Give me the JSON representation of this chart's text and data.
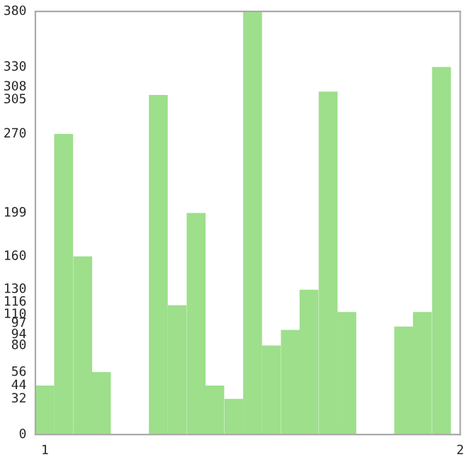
{
  "chart_data": {
    "type": "bar",
    "x": [
      1,
      1.045,
      1.091,
      1.136,
      1.182,
      1.227,
      1.273,
      1.318,
      1.364,
      1.409,
      1.455,
      1.5,
      1.545,
      1.591,
      1.636,
      1.682,
      1.727,
      1.773,
      1.818,
      1.864,
      1.909,
      1.955
    ],
    "values": [
      44,
      270,
      160,
      56,
      0,
      0,
      305,
      116,
      199,
      44,
      32,
      380,
      80,
      94,
      130,
      308,
      110,
      0,
      0,
      97,
      110,
      330
    ],
    "color": "#9ddf8a",
    "xlim": [
      0.977,
      2.0
    ],
    "xticks": [
      1,
      2
    ],
    "ylim": [
      0,
      380
    ],
    "yticks": [
      0,
      32,
      44,
      56,
      80,
      94,
      97,
      110,
      116,
      130,
      160,
      199,
      270,
      305,
      308,
      330,
      380
    ],
    "grid": false
  }
}
